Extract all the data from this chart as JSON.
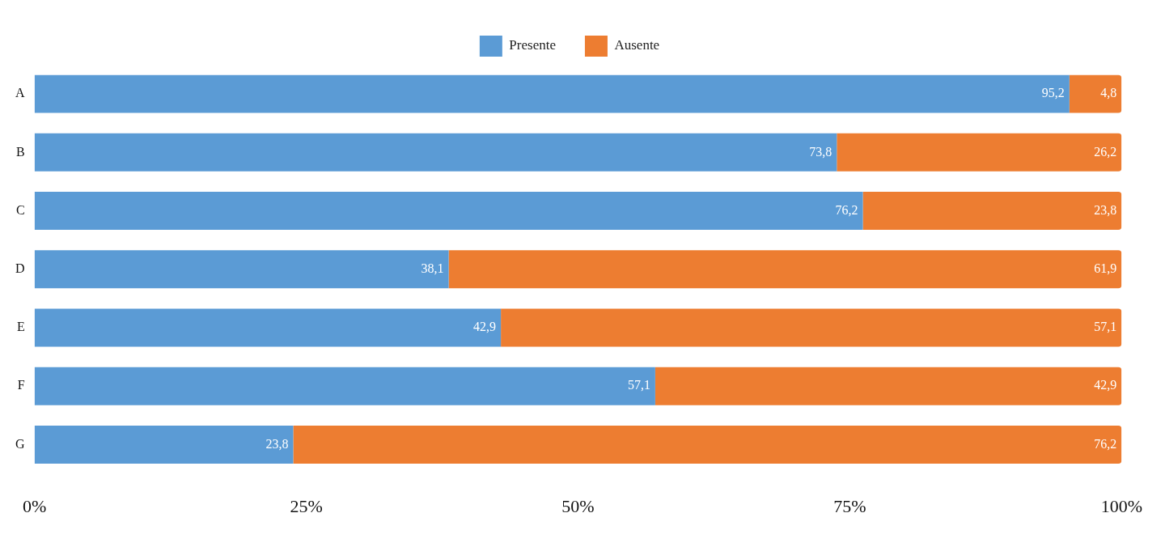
{
  "chart_data": {
    "type": "bar",
    "orientation": "horizontal",
    "stacked": true,
    "legend": "top",
    "categories": [
      "A",
      "B",
      "C",
      "D",
      "E",
      "F",
      "G"
    ],
    "series": [
      {
        "name": "Presente",
        "color": "#5b9bd5",
        "values": [
          95.2,
          73.8,
          76.2,
          38.1,
          42.9,
          57.1,
          23.8
        ],
        "value_labels": [
          "95,2",
          "73,8",
          "76,2",
          "38,1",
          "42,9",
          "57,1",
          "23,8"
        ]
      },
      {
        "name": "Ausente",
        "color": "#ed7d31",
        "values": [
          4.8,
          26.2,
          23.8,
          61.9,
          57.1,
          42.9,
          76.2
        ],
        "value_labels": [
          "4,8",
          "26,2",
          "23,8",
          "61,9",
          "57,1",
          "42,9",
          "76,2"
        ]
      }
    ],
    "xlim": [
      0,
      100
    ],
    "xticks": [
      {
        "value": 0,
        "label": "0%"
      },
      {
        "value": 25,
        "label": "25%"
      },
      {
        "value": 50,
        "label": "50%"
      },
      {
        "value": 75,
        "label": "75%"
      },
      {
        "value": 100,
        "label": "100%"
      }
    ],
    "grid": false
  }
}
